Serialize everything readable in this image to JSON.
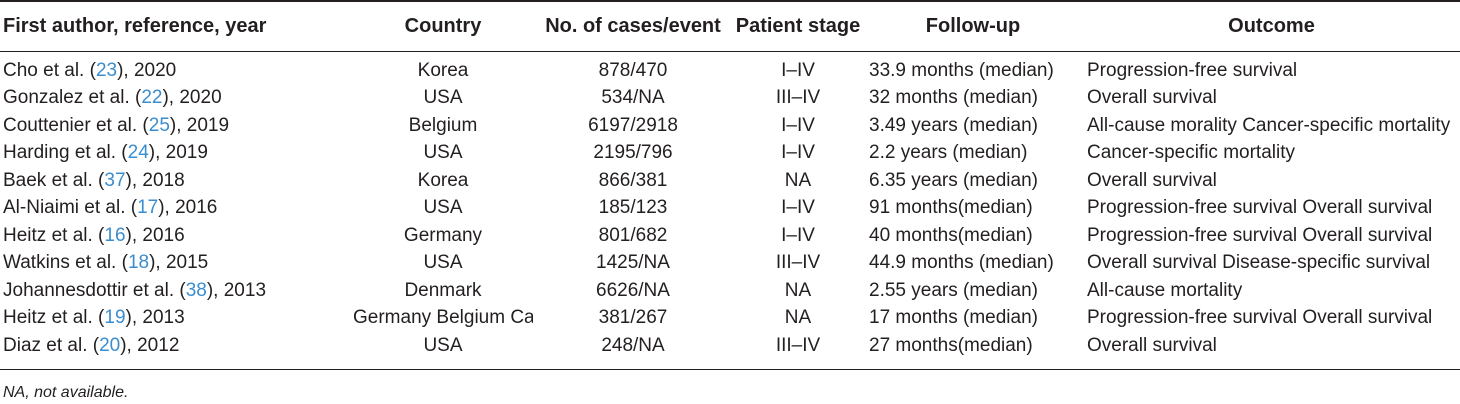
{
  "table": {
    "headers": [
      "First author, reference, year",
      "Country",
      "No. of cases/event",
      "Patient stage",
      "Follow-up",
      "Outcome"
    ],
    "rows": [
      {
        "author": "Cho et al. (",
        "ref": "23",
        "year": "), 2020",
        "country": "Korea",
        "cases": "878/470",
        "stage": "I–IV",
        "followup": "33.9 months (median)",
        "outcome": "Progression-free survival"
      },
      {
        "author": "Gonzalez et al. (",
        "ref": "22",
        "year": "), 2020",
        "country": "USA",
        "cases": "534/NA",
        "stage": "III–IV",
        "followup": "32 months (median)",
        "outcome": "Overall survival"
      },
      {
        "author": "Couttenier et al. (",
        "ref": "25",
        "year": "), 2019",
        "country": "Belgium",
        "cases": "6197/2918",
        "stage": "I–IV",
        "followup": "3.49 years (median)",
        "outcome": "All-cause morality Cancer-specific mortality"
      },
      {
        "author": "Harding et al. (",
        "ref": "24",
        "year": "), 2019",
        "country": "USA",
        "cases": "2195/796",
        "stage": "I–IV",
        "followup": "2.2 years (median)",
        "outcome": "Cancer-specific mortality"
      },
      {
        "author": "Baek et al. (",
        "ref": "37",
        "year": "), 2018",
        "country": "Korea",
        "cases": "866/381",
        "stage": "NA",
        "followup": "6.35 years (median)",
        "outcome": "Overall survival"
      },
      {
        "author": "Al-Niaimi et al. (",
        "ref": "17",
        "year": "), 2016",
        "country": "USA",
        "cases": "185/123",
        "stage": "I–IV",
        "followup": "91 months(median)",
        "outcome": "Progression-free survival Overall survival"
      },
      {
        "author": "Heitz et al. (",
        "ref": "16",
        "year": "), 2016",
        "country": "Germany",
        "cases": "801/682",
        "stage": "I–IV",
        "followup": "40 months(median)",
        "outcome": "Progression-free survival Overall survival"
      },
      {
        "author": "Watkins et al. (",
        "ref": "18",
        "year": "), 2015",
        "country": "USA",
        "cases": "1425/NA",
        "stage": "III–IV",
        "followup": "44.9 months (median)",
        "outcome": "Overall survival Disease-specific survival"
      },
      {
        "author": "Johannesdottir et al. (",
        "ref": "38",
        "year": "), 2013",
        "country": "Denmark",
        "cases": "6626/NA",
        "stage": "NA",
        "followup": "2.55 years (median)",
        "outcome": "All-cause mortality"
      },
      {
        "author": "Heitz et al. (",
        "ref": "19",
        "year": "), 2013",
        "country": "Germany Belgium Canada",
        "cases": "381/267",
        "stage": "NA",
        "followup": "17 months (median)",
        "outcome": "Progression-free survival Overall survival"
      },
      {
        "author": "Diaz et al. (",
        "ref": "20",
        "year": "), 2012",
        "country": "USA",
        "cases": "248/NA",
        "stage": "III–IV",
        "followup": "27 months(median)",
        "outcome": "Overall survival"
      }
    ]
  },
  "footnote": "NA, not available.",
  "colors": {
    "text": "#231f20",
    "reference_link": "#3a8dcf",
    "rule": "#231f20"
  }
}
